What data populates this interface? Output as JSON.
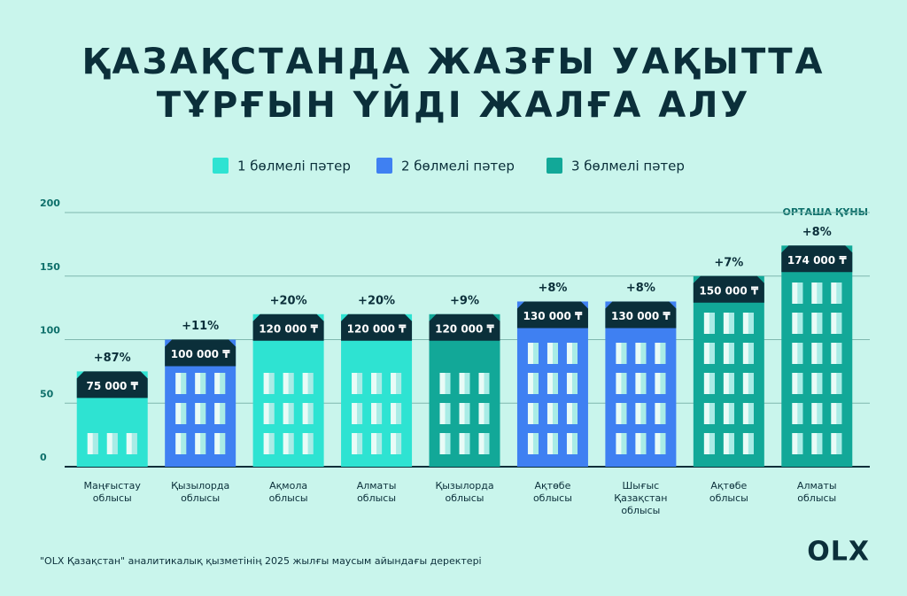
{
  "chart_data": {
    "type": "bar",
    "title": [
      "ҚАЗАҚСТАНДА ЖАЗҒЫ УАҚЫТТА",
      "ТҰРҒЫН ҮЙДІ ЖАЛҒА АЛУ"
    ],
    "y_label": "ОРТАША ҚҰНЫ",
    "categories": [
      [
        "Маңғыстау",
        "облысы"
      ],
      [
        "Қызылорда",
        "облысы"
      ],
      [
        "Ақмола",
        "облысы"
      ],
      [
        "Алматы",
        "облысы"
      ],
      [
        "Қызылорда",
        "облысы"
      ],
      [
        "Ақтөбе",
        "облысы"
      ],
      [
        "Шығыс",
        "Қазақстан",
        "облысы"
      ],
      [
        "Ақтөбе",
        "облысы"
      ],
      [
        "Алматы",
        "облысы"
      ]
    ],
    "series": [
      {
        "name": "1 бөлмелі пәтер",
        "color": "#2ee3d2",
        "values": [
          75,
          null,
          120,
          120,
          null,
          null,
          null,
          null,
          null
        ],
        "value_labels": [
          "75 000 ₸",
          null,
          "120 000 ₸",
          "120 000 ₸",
          null,
          null,
          null,
          null,
          null
        ]
      },
      {
        "name": "2 бөлмелі пәтер",
        "color": "#3f80f2",
        "values": [
          null,
          100,
          null,
          null,
          null,
          130,
          130,
          null,
          null
        ],
        "value_labels": [
          null,
          "100 000 ₸",
          null,
          null,
          null,
          "130 000 ₸",
          "130 000 ₸",
          null,
          null
        ]
      },
      {
        "name": "3 бөлмелі пәтер",
        "color": "#12a898",
        "values": [
          null,
          null,
          null,
          null,
          120,
          null,
          null,
          150,
          174
        ],
        "value_labels": [
          null,
          null,
          null,
          null,
          "120 000 ₸",
          null,
          null,
          "150 000 ₸",
          "174 000 ₸"
        ]
      }
    ],
    "annotations": [
      "+87%",
      "+11%",
      "+20%",
      "+20%",
      "+9%",
      "+8%",
      "+8%",
      "+7%",
      "+8%"
    ],
    "ylim": [
      0,
      200
    ],
    "yticks": [
      0,
      50,
      100,
      150,
      200
    ],
    "grid": true,
    "source": "\"OLX Қазақстан\" аналитикалық қызметінің 2025 жылғы маусым айындағы деректері",
    "logo": "OLX"
  }
}
